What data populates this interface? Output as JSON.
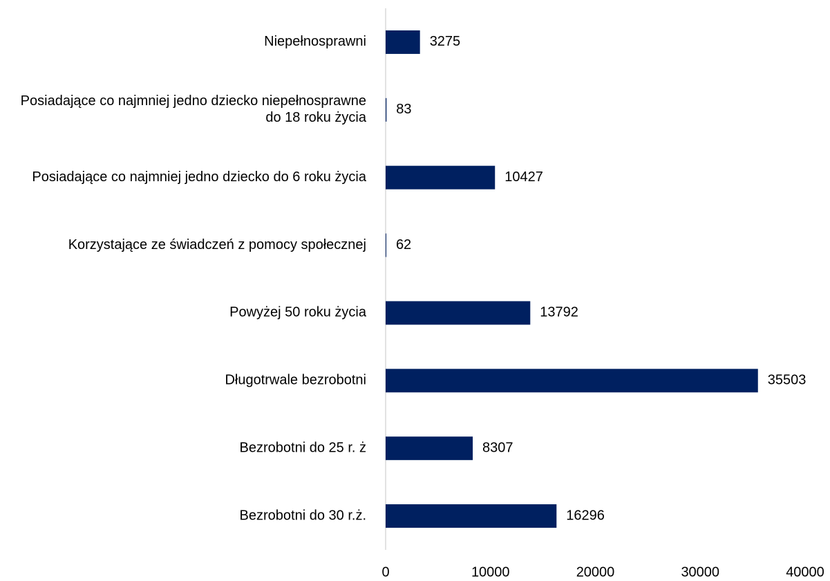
{
  "chart_data": {
    "type": "bar",
    "orientation": "horizontal",
    "categories": [
      "Niepełnosprawni",
      "Posiadające co najmniej jedno dziecko niepełnosprawne do 18 roku życia",
      "Posiadające co najmniej jedno dziecko do 6 roku życia",
      "Korzystające ze świadczeń z pomocy społecznej",
      "Powyżej 50 roku życia",
      "Długotrwale bezrobotni",
      "Bezrobotni do 25 r. ż",
      "Bezrobotni do 30 r.ż."
    ],
    "values": [
      3275,
      83,
      10427,
      62,
      13792,
      35503,
      8307,
      16296
    ],
    "color": "#002060",
    "xlim": [
      0,
      40000
    ],
    "xticks": [
      0,
      10000,
      20000,
      30000,
      40000
    ],
    "grid": false
  }
}
